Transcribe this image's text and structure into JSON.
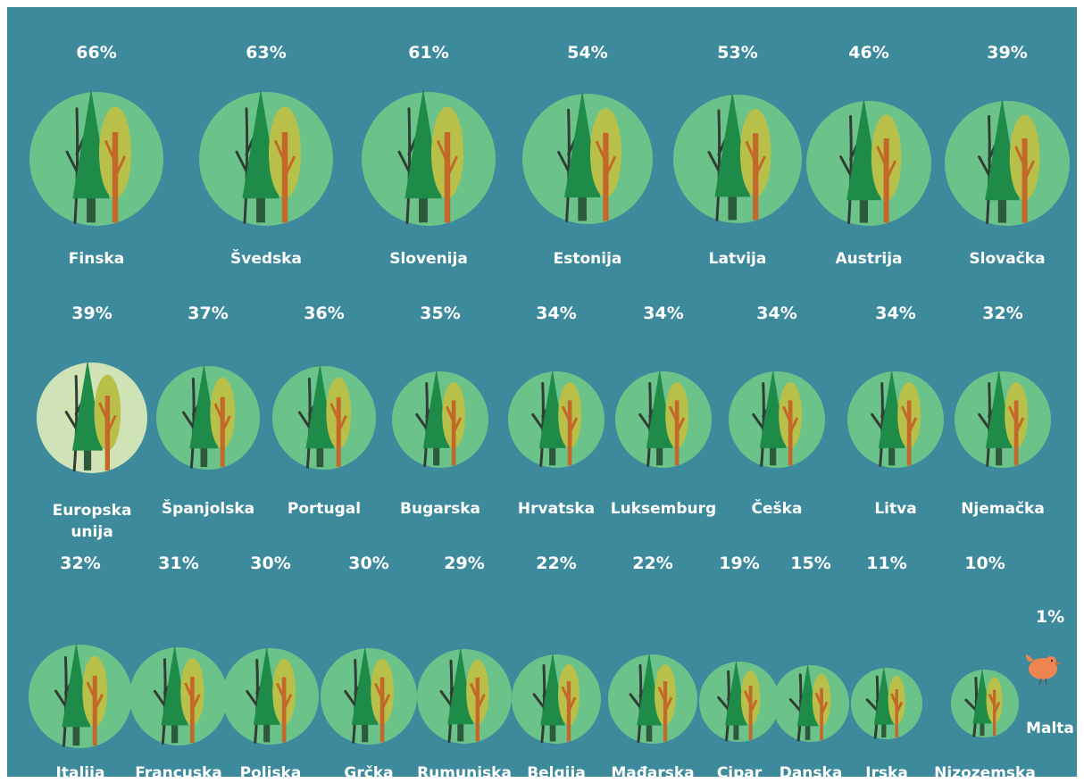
{
  "chart_data": {
    "type": "pictogram",
    "countries": [
      {
        "name": "Finska",
        "value": "66%"
      },
      {
        "name": "Švedska",
        "value": "63%"
      },
      {
        "name": "Slovenija",
        "value": "61%"
      },
      {
        "name": "Estonija",
        "value": "54%"
      },
      {
        "name": "Latvija",
        "value": "53%"
      },
      {
        "name": "Austrija",
        "value": "46%"
      },
      {
        "name": "Slovačka",
        "value": "39%"
      },
      {
        "name": "Europska unija",
        "value": "39%"
      },
      {
        "name": "Španjolska",
        "value": "37%"
      },
      {
        "name": "Portugal",
        "value": "36%"
      },
      {
        "name": "Bugarska",
        "value": "35%"
      },
      {
        "name": "Hrvatska",
        "value": "34%"
      },
      {
        "name": "Luksemburg",
        "value": "34%"
      },
      {
        "name": "Češka",
        "value": "34%"
      },
      {
        "name": "Litva",
        "value": "34%"
      },
      {
        "name": "Njemačka",
        "value": "32%"
      },
      {
        "name": "Italija",
        "value": "32%"
      },
      {
        "name": "Francuska",
        "value": "31%"
      },
      {
        "name": "Poljska",
        "value": "30%"
      },
      {
        "name": "Grčka",
        "value": "30%"
      },
      {
        "name": "Rumunjska",
        "value": "29%"
      },
      {
        "name": "Belgija",
        "value": "22%"
      },
      {
        "name": "Mađarska",
        "value": "22%"
      },
      {
        "name": "Cipar",
        "value": "19%"
      },
      {
        "name": "Danska",
        "value": "15%"
      },
      {
        "name": "Irska",
        "value": "11%"
      },
      {
        "name": "Nizozemska",
        "value": "10%"
      },
      {
        "name": "Malta",
        "value": "1%"
      }
    ]
  },
  "colors": {
    "background": "#3c8a9c",
    "circle": "#6cc38a",
    "eu_circle": "#cfe3b6",
    "conifer": "#1f8b49",
    "leafy_crown": "#b8c04a",
    "leafy_trunk": "#c4682a",
    "bare_tree": "#2f3d35",
    "bird": "#ee8550",
    "text": "#ffffff"
  }
}
